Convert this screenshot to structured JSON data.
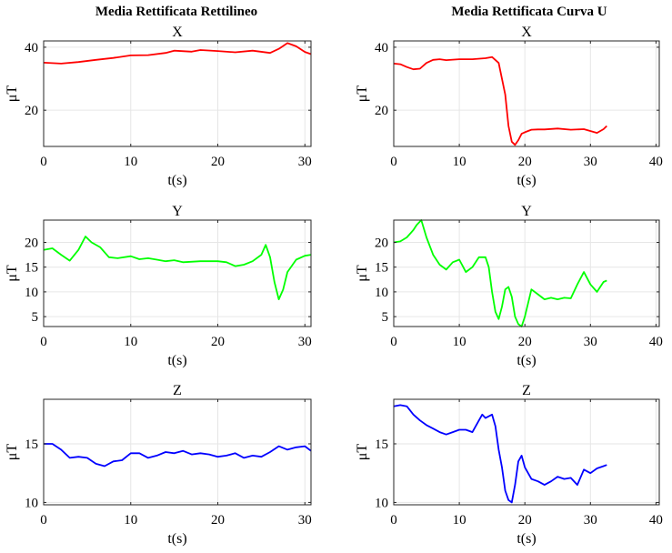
{
  "column_titles": [
    "Media Rettificata Rettilineo",
    "Media Rettificata Curva U"
  ],
  "chart_data": [
    {
      "type": "line",
      "title": "X",
      "xlabel": "t(s)",
      "ylabel": "μT",
      "xlim": [
        0,
        30.7
      ],
      "ylim": [
        8.5,
        42
      ],
      "xticks": [
        0,
        10,
        20,
        30
      ],
      "yticks": [
        20,
        40
      ],
      "grid": true,
      "color": "#ff0000",
      "series": [
        {
          "x": [
            0,
            2,
            4,
            6,
            8,
            10,
            12,
            14,
            15,
            17,
            18,
            20,
            22,
            24,
            26,
            27,
            28,
            29,
            30,
            30.7
          ],
          "y": [
            35.1,
            34.8,
            35.3,
            36.0,
            36.6,
            37.4,
            37.5,
            38.2,
            38.9,
            38.6,
            39.1,
            38.8,
            38.4,
            38.9,
            38.2,
            39.5,
            41.3,
            40.3,
            38.5,
            37.8
          ]
        }
      ]
    },
    {
      "type": "line",
      "title": "X",
      "xlabel": "t(s)",
      "ylabel": "μT",
      "xlim": [
        0,
        40.5
      ],
      "ylim": [
        8.5,
        42
      ],
      "xticks": [
        0,
        10,
        20,
        30,
        40
      ],
      "yticks": [
        20,
        40
      ],
      "grid": true,
      "color": "#ff0000",
      "series": [
        {
          "x": [
            0,
            1,
            2,
            3,
            4,
            5,
            6,
            7,
            8,
            10,
            12,
            14,
            15,
            16,
            16.5,
            17,
            17.5,
            18,
            18.5,
            19,
            19.5,
            20,
            21,
            22,
            23,
            25,
            27,
            29,
            31,
            32,
            32.5
          ],
          "y": [
            34.8,
            34.6,
            33.7,
            33.0,
            33.2,
            35.0,
            36.0,
            36.2,
            35.9,
            36.2,
            36.2,
            36.5,
            36.9,
            35.0,
            30.0,
            25.0,
            15.0,
            10.0,
            9.0,
            10.5,
            12.5,
            13.0,
            13.8,
            13.9,
            13.9,
            14.2,
            13.8,
            14.0,
            12.8,
            14.0,
            15.0
          ]
        }
      ]
    },
    {
      "type": "line",
      "title": "Y",
      "xlabel": "t(s)",
      "ylabel": "μT",
      "xlim": [
        0,
        30.7
      ],
      "ylim": [
        3,
        24.5
      ],
      "xticks": [
        0,
        10,
        20,
        30
      ],
      "yticks": [
        5,
        10,
        15,
        20
      ],
      "grid": true,
      "color": "#00ff00",
      "series": [
        {
          "x": [
            0,
            1,
            2,
            3,
            4,
            4.8,
            5.5,
            6.5,
            7.5,
            8.5,
            10,
            11,
            12,
            13,
            14,
            15,
            16,
            18,
            20,
            21,
            22,
            23,
            24,
            25,
            25.5,
            26,
            26.5,
            27,
            27.5,
            28,
            29,
            30,
            30.7
          ],
          "y": [
            18.5,
            18.8,
            17.5,
            16.3,
            18.5,
            21.2,
            20.0,
            19.0,
            17.0,
            16.8,
            17.2,
            16.6,
            16.8,
            16.5,
            16.2,
            16.4,
            16.0,
            16.2,
            16.2,
            16.0,
            15.2,
            15.5,
            16.2,
            17.5,
            19.5,
            17.0,
            12.0,
            8.5,
            10.5,
            14.0,
            16.5,
            17.3,
            17.5
          ]
        }
      ]
    },
    {
      "type": "line",
      "title": "Y",
      "xlabel": "t(s)",
      "ylabel": "μT",
      "xlim": [
        0,
        40.5
      ],
      "ylim": [
        3,
        24.5
      ],
      "xticks": [
        0,
        10,
        20,
        30,
        40
      ],
      "yticks": [
        5,
        10,
        15,
        20
      ],
      "grid": true,
      "color": "#00ff00",
      "series": [
        {
          "x": [
            0,
            1,
            2,
            3,
            3.5,
            4.2,
            5,
            6,
            7,
            8,
            9,
            10,
            11,
            12,
            13,
            14,
            14.5,
            15,
            15.5,
            16,
            16.5,
            17,
            17.5,
            18,
            18.5,
            19,
            19.5,
            20,
            21,
            22,
            23,
            24,
            25,
            26,
            27,
            28,
            29,
            30,
            31,
            32,
            32.5
          ],
          "y": [
            20.0,
            20.2,
            21.0,
            22.5,
            23.5,
            24.5,
            21.0,
            17.5,
            15.5,
            14.5,
            16.0,
            16.5,
            14.0,
            15.0,
            17.0,
            17.0,
            15.0,
            10.0,
            6.0,
            4.5,
            7.0,
            10.5,
            11.0,
            9.0,
            5.0,
            3.5,
            3.0,
            5.0,
            10.5,
            9.5,
            8.5,
            8.8,
            8.5,
            8.8,
            8.7,
            11.5,
            14.0,
            11.5,
            10.0,
            12.0,
            12.3
          ]
        }
      ]
    },
    {
      "type": "line",
      "title": "Z",
      "xlabel": "t(s)",
      "ylabel": "μT",
      "xlim": [
        0,
        30.7
      ],
      "ylim": [
        9.8,
        18.8
      ],
      "xticks": [
        0,
        10,
        20,
        30
      ],
      "yticks": [
        10,
        15
      ],
      "grid": true,
      "color": "#0000ff",
      "series": [
        {
          "x": [
            0,
            1,
            2,
            3,
            4,
            5,
            6,
            7,
            8,
            9,
            10,
            11,
            12,
            13,
            14,
            15,
            16,
            17,
            18,
            19,
            20,
            21,
            22,
            23,
            24,
            25,
            26,
            27,
            28,
            29,
            30,
            30.7
          ],
          "y": [
            15.0,
            15.0,
            14.5,
            13.8,
            13.9,
            13.8,
            13.3,
            13.1,
            13.5,
            13.6,
            14.2,
            14.2,
            13.8,
            14.0,
            14.3,
            14.2,
            14.4,
            14.1,
            14.2,
            14.1,
            13.9,
            14.0,
            14.2,
            13.8,
            14.0,
            13.9,
            14.3,
            14.8,
            14.5,
            14.7,
            14.8,
            14.4
          ]
        }
      ]
    },
    {
      "type": "line",
      "title": "Z",
      "xlabel": "t(s)",
      "ylabel": "μT",
      "xlim": [
        0,
        40.5
      ],
      "ylim": [
        9.8,
        18.8
      ],
      "xticks": [
        0,
        10,
        20,
        30,
        40
      ],
      "yticks": [
        10,
        15
      ],
      "grid": true,
      "color": "#0000ff",
      "series": [
        {
          "x": [
            0,
            1,
            2,
            3,
            4,
            5,
            6,
            7,
            8,
            9,
            10,
            11,
            12,
            13,
            13.5,
            14,
            15,
            15.5,
            16,
            16.5,
            17,
            17.5,
            18,
            18.5,
            19,
            19.5,
            20,
            21,
            22,
            23,
            24,
            25,
            26,
            27,
            28,
            29,
            30,
            31,
            32,
            32.5
          ],
          "y": [
            18.2,
            18.3,
            18.2,
            17.5,
            17.0,
            16.6,
            16.3,
            16.0,
            15.8,
            16.0,
            16.2,
            16.2,
            16.0,
            17.0,
            17.5,
            17.2,
            17.5,
            16.5,
            14.5,
            13.0,
            11.0,
            10.2,
            10.0,
            11.5,
            13.5,
            14.0,
            13.0,
            12.0,
            11.8,
            11.5,
            11.8,
            12.2,
            12.0,
            12.1,
            11.5,
            12.8,
            12.5,
            12.9,
            13.1,
            13.2
          ]
        }
      ]
    }
  ]
}
